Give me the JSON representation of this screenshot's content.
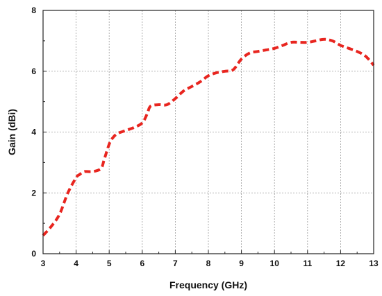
{
  "chart_data": {
    "type": "line",
    "xlabel": "Frequency (GHz)",
    "ylabel": "Gain (dBi)",
    "xlim": [
      3,
      13
    ],
    "ylim": [
      0,
      8
    ],
    "xticks": [
      3,
      4,
      5,
      6,
      7,
      8,
      9,
      10,
      11,
      12,
      13
    ],
    "yticks": [
      0,
      2,
      4,
      6,
      8
    ],
    "grid": true,
    "colors": {
      "series": "#e8251f",
      "grid": "#9a9a9a",
      "axis": "#222222"
    },
    "series": [
      {
        "x": [
          3.0,
          3.25,
          3.5,
          3.75,
          4.0,
          4.1,
          4.25,
          4.5,
          4.75,
          4.85,
          5.0,
          5.1,
          5.25,
          5.5,
          5.75,
          6.0,
          6.15,
          6.25,
          6.5,
          6.75,
          7.0,
          7.25,
          7.5,
          7.75,
          8.0,
          8.25,
          8.5,
          8.75,
          9.0,
          9.25,
          9.5,
          9.75,
          10.0,
          10.25,
          10.5,
          10.75,
          11.0,
          11.25,
          11.5,
          11.75,
          12.0,
          12.25,
          12.5,
          12.75,
          13.0
        ],
        "y": [
          0.6,
          0.9,
          1.3,
          2.0,
          2.5,
          2.6,
          2.7,
          2.7,
          2.8,
          3.1,
          3.6,
          3.8,
          3.95,
          4.05,
          4.15,
          4.3,
          4.6,
          4.85,
          4.9,
          4.9,
          5.1,
          5.35,
          5.5,
          5.65,
          5.85,
          5.95,
          6.0,
          6.05,
          6.4,
          6.6,
          6.65,
          6.7,
          6.75,
          6.85,
          6.95,
          6.95,
          6.95,
          7.0,
          7.05,
          7.0,
          6.85,
          6.75,
          6.65,
          6.5,
          6.2
        ]
      }
    ]
  }
}
